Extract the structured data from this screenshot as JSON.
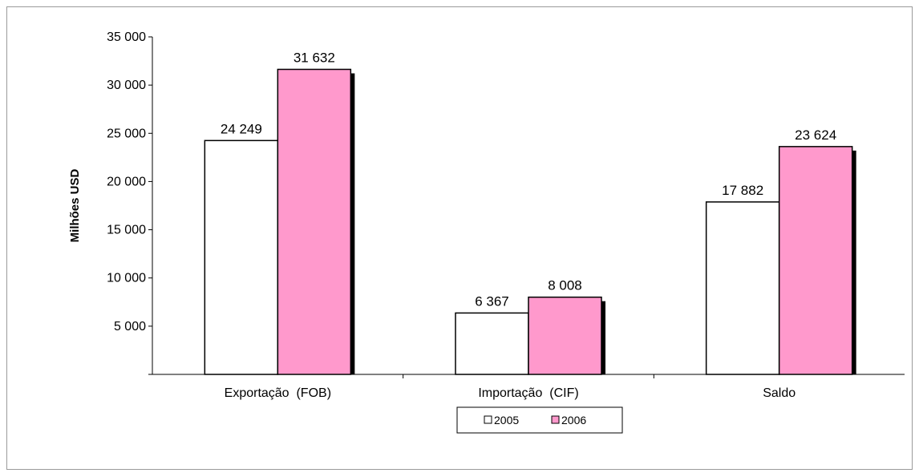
{
  "chart_data": {
    "type": "bar",
    "title": "",
    "xlabel": "",
    "ylabel": "Milhões USD",
    "categories": [
      "Exportação  (FOB)",
      "Importação  (CIF)",
      "Saldo"
    ],
    "series": [
      {
        "name": "2005",
        "values": [
          24249,
          6367,
          17882
        ],
        "labels": [
          "24 249",
          "6 367",
          "17 882"
        ],
        "color": "#ffffff"
      },
      {
        "name": "2006",
        "values": [
          31632,
          8008,
          23624
        ],
        "labels": [
          "31 632",
          "8 008",
          "23 624"
        ],
        "color": "#ff99cc"
      }
    ],
    "yticks": [
      5000,
      10000,
      15000,
      20000,
      25000,
      30000,
      35000
    ],
    "ytick_labels": [
      "5 000",
      "10 000",
      "15 000",
      "20 000",
      "25 000",
      "30 000",
      "35 000"
    ],
    "ylim": [
      0,
      35000
    ],
    "grid": false,
    "legend": "bottom-center",
    "bar_shadow": true
  }
}
